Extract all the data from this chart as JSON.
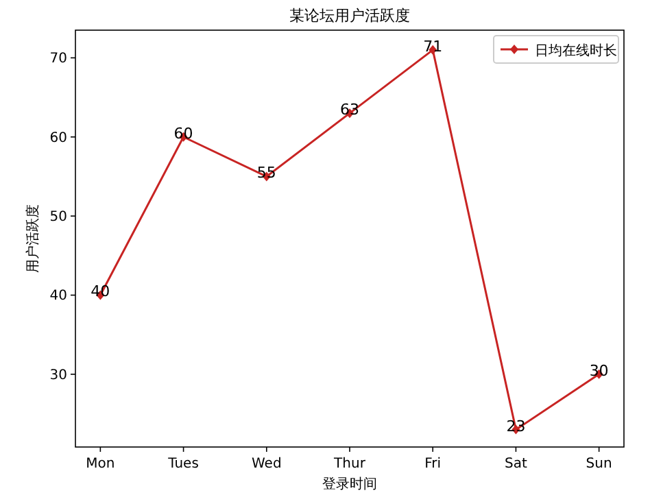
{
  "chart_data": {
    "type": "line",
    "title": "某论坛用户活跃度",
    "xlabel": "登录时间",
    "ylabel": "用户活跃度",
    "categories": [
      "Mon",
      "Tues",
      "Wed",
      "Thur",
      "Fri",
      "Sat",
      "Sun"
    ],
    "series": [
      {
        "name": "日均在线时长",
        "color": "#c82423",
        "values": [
          40,
          60,
          55,
          63,
          71,
          23,
          30
        ]
      }
    ],
    "ylim": [
      20.8,
      73.5
    ],
    "yticks": [
      30,
      40,
      50,
      60,
      70
    ],
    "data_labels": true,
    "grid": false,
    "legend": "top right",
    "marker": "diamond",
    "line_style": "solid"
  }
}
